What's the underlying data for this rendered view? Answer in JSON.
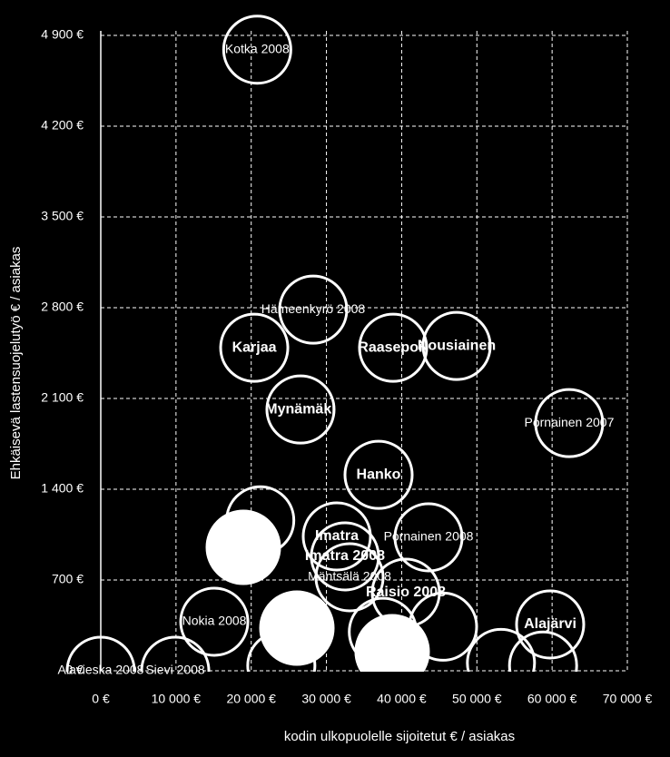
{
  "chart_data": {
    "type": "bubble",
    "x_label": "kodin ulkopuolelle sijoitetut € / asiakas",
    "y_label": "Ehkäisevä lastensuojelutyö  € / asiakas",
    "xlim": [
      0,
      70000
    ],
    "ylim": [
      0,
      4900
    ],
    "xticks": [
      {
        "value": 0,
        "label": "0 €"
      },
      {
        "value": 10000,
        "label": "10 000 €"
      },
      {
        "value": 20000,
        "label": "20 000 €"
      },
      {
        "value": 30000,
        "label": "30 000 €"
      },
      {
        "value": 40000,
        "label": "40 000 €"
      },
      {
        "value": 50000,
        "label": "50 000 €"
      },
      {
        "value": 60000,
        "label": "60 000 €"
      },
      {
        "value": 70000,
        "label": "70 000 €"
      }
    ],
    "yticks": [
      {
        "value": 0,
        "label": "0 €"
      },
      {
        "value": 700,
        "label": "700 €"
      },
      {
        "value": 1400,
        "label": "1 400 €"
      },
      {
        "value": 2100,
        "label": "2 100 €"
      },
      {
        "value": 2800,
        "label": "2 800 €"
      },
      {
        "value": 3500,
        "label": "3 500 €"
      },
      {
        "value": 4200,
        "label": "4 200 €"
      },
      {
        "value": 4900,
        "label": "4 900 €"
      }
    ],
    "grid": true,
    "color": "#ffffff",
    "points": [
      {
        "x": 20800,
        "y": 4790,
        "label": "Kotka 2008",
        "bold": false,
        "filled": false
      },
      {
        "x": 28240,
        "y": 2785,
        "label": "Hämeenkyrö 2008",
        "bold": false,
        "filled": false
      },
      {
        "x": 20400,
        "y": 2491,
        "label": "Karjaa",
        "bold": true,
        "filled": false
      },
      {
        "x": 38860,
        "y": 2491,
        "label": "Raasepori",
        "bold": true,
        "filled": false
      },
      {
        "x": 47310,
        "y": 2505,
        "label": "Nousiainen",
        "bold": true,
        "filled": false
      },
      {
        "x": 26550,
        "y": 2015,
        "label": "Mynämäki",
        "bold": true,
        "filled": false
      },
      {
        "x": 62270,
        "y": 1910,
        "label": "Pornainen 2007",
        "bold": false,
        "filled": false
      },
      {
        "x": 36930,
        "y": 1511,
        "label": "Hanko",
        "bold": true,
        "filled": false
      },
      {
        "x": 43570,
        "y": 1029,
        "label": "Pornainen 2008",
        "bold": false,
        "filled": false
      },
      {
        "x": 31380,
        "y": 1036,
        "label": "Imatra",
        "bold": true,
        "filled": false
      },
      {
        "x": 32460,
        "y": 882,
        "label": "Imatra 2008",
        "bold": true,
        "filled": false
      },
      {
        "x": 33070,
        "y": 721,
        "label": "Mäntsälä 2008",
        "bold": false,
        "filled": false
      },
      {
        "x": 40550,
        "y": 602,
        "label": "Raisio 2008",
        "bold": true,
        "filled": false
      },
      {
        "x": 59740,
        "y": 357,
        "label": "Alajärvi",
        "bold": true,
        "filled": false
      },
      {
        "x": 15090,
        "y": 378,
        "label": "Nokia 2008",
        "bold": false,
        "filled": false
      },
      {
        "x": 0,
        "y": 0,
        "label": "Alavieska 2008",
        "bold": false,
        "filled": false
      },
      {
        "x": 9900,
        "y": 0,
        "label": "Sievi 2008",
        "bold": false,
        "filled": false
      },
      {
        "x": 21200,
        "y": 1160,
        "filled": false
      },
      {
        "x": 45500,
        "y": 340,
        "filled": false
      },
      {
        "x": 37500,
        "y": 300,
        "filled": false
      },
      {
        "x": 53200,
        "y": 60,
        "filled": false
      },
      {
        "x": 58800,
        "y": 40,
        "filled": false
      },
      {
        "x": 24000,
        "y": 40,
        "filled": false
      },
      {
        "x": 18950,
        "y": 952,
        "filled": true
      },
      {
        "x": 26070,
        "y": 329,
        "filled": true
      },
      {
        "x": 38740,
        "y": 147,
        "filled": true
      }
    ]
  }
}
